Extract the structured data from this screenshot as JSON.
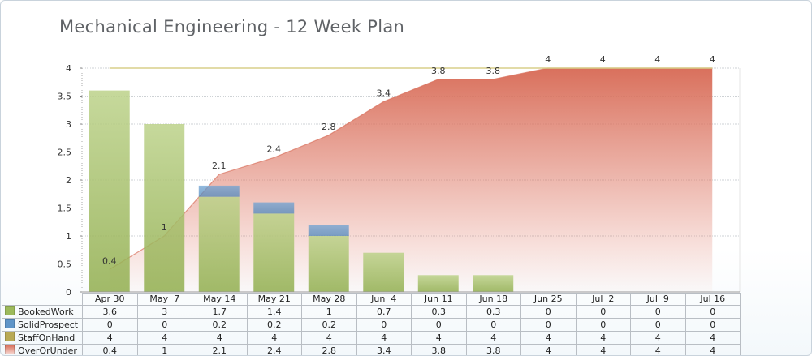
{
  "title": "Mechanical Engineering - 12 Week Plan",
  "colors": {
    "booked": "#9dba5b",
    "solid": "#5f95c8",
    "staff": "#b8a955",
    "over": "#d9705c",
    "grid": "#bfc3c7"
  },
  "chart_data": {
    "type": "bar",
    "categories": [
      "Apr 30",
      "May  7",
      "May 14",
      "May 21",
      "May 28",
      "Jun  4",
      "Jun 11",
      "Jun 18",
      "Jun 25",
      "Jul  2",
      "Jul  9",
      "Jul 16"
    ],
    "ylim": [
      0,
      4
    ],
    "yticks": [
      "0",
      "0.5",
      "1",
      "1.5",
      "2",
      "2.5",
      "3",
      "3.5",
      "4"
    ],
    "grid": true,
    "stacked": true,
    "legend": "data-table",
    "series": [
      {
        "name": "BookedWork",
        "type": "bar",
        "values": [
          3.6,
          3,
          1.7,
          1.4,
          1,
          0.7,
          0.3,
          0.3,
          0,
          0,
          0,
          0
        ]
      },
      {
        "name": "SolidProspect",
        "type": "bar",
        "values": [
          0,
          0,
          0.2,
          0.2,
          0.2,
          0,
          0,
          0,
          0,
          0,
          0,
          0
        ]
      },
      {
        "name": "StaffOnHand",
        "type": "line",
        "values": [
          4,
          4,
          4,
          4,
          4,
          4,
          4,
          4,
          4,
          4,
          4,
          4
        ]
      },
      {
        "name": "OverOrUnder",
        "type": "area",
        "values": [
          0.4,
          1,
          2.1,
          2.4,
          2.8,
          3.4,
          3.8,
          3.8,
          4,
          4,
          4,
          4
        ]
      }
    ]
  }
}
